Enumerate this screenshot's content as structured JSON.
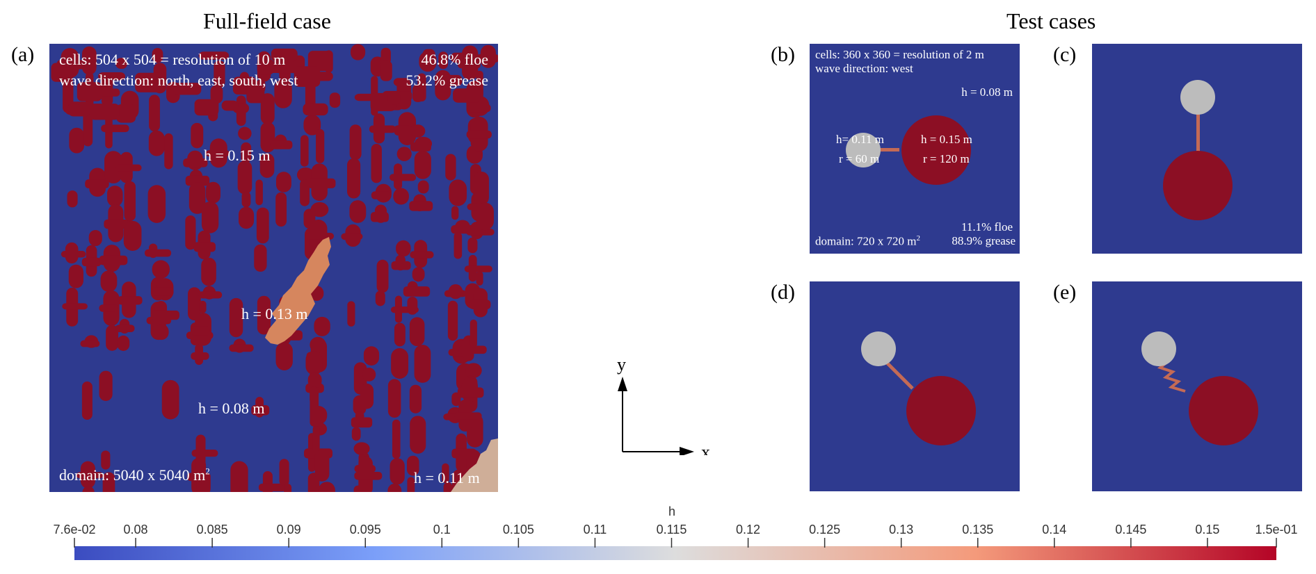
{
  "titles": {
    "full_field": "Full-field case",
    "test_cases": "Test cases"
  },
  "panel_labels": {
    "a": "(a)",
    "b": "(b)",
    "c": "(c)",
    "d": "(d)",
    "e": "(e)"
  },
  "panel_a": {
    "cells": "cells: 504 x 504 = resolution of 10 m",
    "wave": "wave direction: north, east, south, west",
    "floe_pct": "46.8% floe",
    "grease_pct": "53.2% grease",
    "h_floe": "h = 0.15 m",
    "h_mid": "h = 0.13 m",
    "h_grease": "h = 0.08 m",
    "domain_prefix": "domain: 5040 x 5040 m",
    "domain_exp": "2",
    "h_corner": "h = 0.11 m"
  },
  "panel_b": {
    "cells": "cells: 360 x 360 = resolution of 2 m",
    "wave": "wave direction: west",
    "h_bg": "h = 0.08 m",
    "small_h": "h= 0.11 m",
    "small_r": "r = 60 m",
    "large_h": "h = 0.15 m",
    "large_r": "r = 120 m",
    "domain_prefix": "domain: 720 x 720 m",
    "domain_exp": "2",
    "floe_pct": "11.1% floe",
    "grease_pct": "88.9% grease"
  },
  "axes": {
    "x": "x",
    "y": "y"
  },
  "colorbar": {
    "title": "h",
    "ticks": [
      "7.6e-02",
      "0.08",
      "0.085",
      "0.09",
      "0.095",
      "0.1",
      "0.105",
      "0.11",
      "0.115",
      "0.12",
      "0.125",
      "0.13",
      "0.135",
      "0.14",
      "0.145",
      "0.15",
      "1.5e-01"
    ],
    "tick_values": [
      0.076,
      0.08,
      0.085,
      0.09,
      0.095,
      0.1,
      0.105,
      0.11,
      0.115,
      0.12,
      0.125,
      0.13,
      0.135,
      0.14,
      0.145,
      0.15,
      0.1545
    ],
    "min": 0.076,
    "max": 0.1545
  },
  "colors": {
    "grease": "#2e3a8f",
    "floe": "#8c0f24",
    "intermediate": "#d6865e",
    "corner": "#cfae98",
    "small_floe": "#bcbcbc",
    "bridge": "#c46a55",
    "cmap_low": "#3b4cc0",
    "cmap_mid": "#dddddd",
    "cmap_high": "#b40426"
  }
}
